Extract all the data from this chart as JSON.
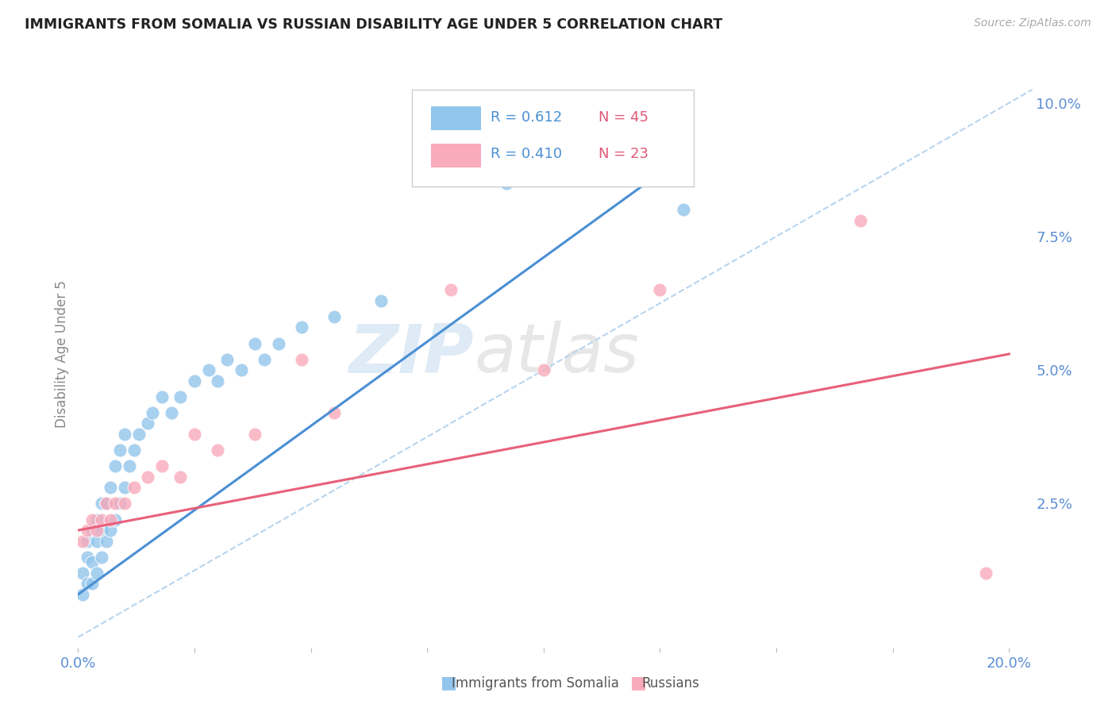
{
  "title": "IMMIGRANTS FROM SOMALIA VS RUSSIAN DISABILITY AGE UNDER 5 CORRELATION CHART",
  "source": "Source: ZipAtlas.com",
  "ylabel": "Disability Age Under 5",
  "xlim": [
    0.0,
    0.205
  ],
  "ylim": [
    -0.002,
    0.108
  ],
  "ytick_labels_right": [
    "2.5%",
    "5.0%",
    "7.5%",
    "10.0%"
  ],
  "ytick_vals_right": [
    0.025,
    0.05,
    0.075,
    0.1
  ],
  "somalia_R": 0.612,
  "somalia_N": 45,
  "russian_R": 0.41,
  "russian_N": 23,
  "somalia_color": "#92C5EC",
  "russian_color": "#F9AABB",
  "somalia_line_color": "#4A8FD4",
  "russian_line_color": "#E8607A",
  "ref_line_color": "#B8D4EE",
  "background_color": "#FFFFFF",
  "grid_color": "#DDDDDD",
  "title_color": "#222222",
  "axis_label_color": "#5B8ED6",
  "watermark": "ZIPatlas",
  "figsize": [
    14.06,
    8.92
  ],
  "dpi": 100,
  "somalia_x": [
    0.001,
    0.001,
    0.002,
    0.002,
    0.002,
    0.003,
    0.003,
    0.003,
    0.004,
    0.004,
    0.004,
    0.005,
    0.005,
    0.005,
    0.006,
    0.006,
    0.007,
    0.007,
    0.008,
    0.008,
    0.009,
    0.009,
    0.01,
    0.01,
    0.011,
    0.012,
    0.013,
    0.015,
    0.016,
    0.018,
    0.02,
    0.022,
    0.025,
    0.028,
    0.03,
    0.032,
    0.035,
    0.038,
    0.04,
    0.043,
    0.048,
    0.055,
    0.065,
    0.092,
    0.13
  ],
  "somalia_y": [
    0.008,
    0.012,
    0.01,
    0.015,
    0.018,
    0.01,
    0.014,
    0.02,
    0.012,
    0.018,
    0.022,
    0.015,
    0.02,
    0.025,
    0.018,
    0.025,
    0.02,
    0.028,
    0.022,
    0.032,
    0.025,
    0.035,
    0.028,
    0.038,
    0.032,
    0.035,
    0.038,
    0.04,
    0.042,
    0.045,
    0.042,
    0.045,
    0.048,
    0.05,
    0.048,
    0.052,
    0.05,
    0.055,
    0.052,
    0.055,
    0.058,
    0.06,
    0.063,
    0.085,
    0.08
  ],
  "russian_x": [
    0.001,
    0.002,
    0.003,
    0.004,
    0.005,
    0.006,
    0.007,
    0.008,
    0.01,
    0.012,
    0.015,
    0.018,
    0.022,
    0.025,
    0.03,
    0.038,
    0.048,
    0.055,
    0.08,
    0.1,
    0.125,
    0.168,
    0.195
  ],
  "russian_y": [
    0.018,
    0.02,
    0.022,
    0.02,
    0.022,
    0.025,
    0.022,
    0.025,
    0.025,
    0.028,
    0.03,
    0.032,
    0.03,
    0.038,
    0.035,
    0.038,
    0.052,
    0.042,
    0.065,
    0.05,
    0.065,
    0.078,
    0.012
  ],
  "somalia_line_x0": 0.0,
  "somalia_line_y0": 0.008,
  "somalia_line_x1": 0.13,
  "somalia_line_y1": 0.09,
  "russian_line_x0": 0.0,
  "russian_line_y0": 0.02,
  "russian_line_x1": 0.2,
  "russian_line_y1": 0.053,
  "ref_line_x0": 0.0,
  "ref_line_y0": 0.0,
  "ref_line_x1": 0.205,
  "ref_line_y1": 0.1025
}
